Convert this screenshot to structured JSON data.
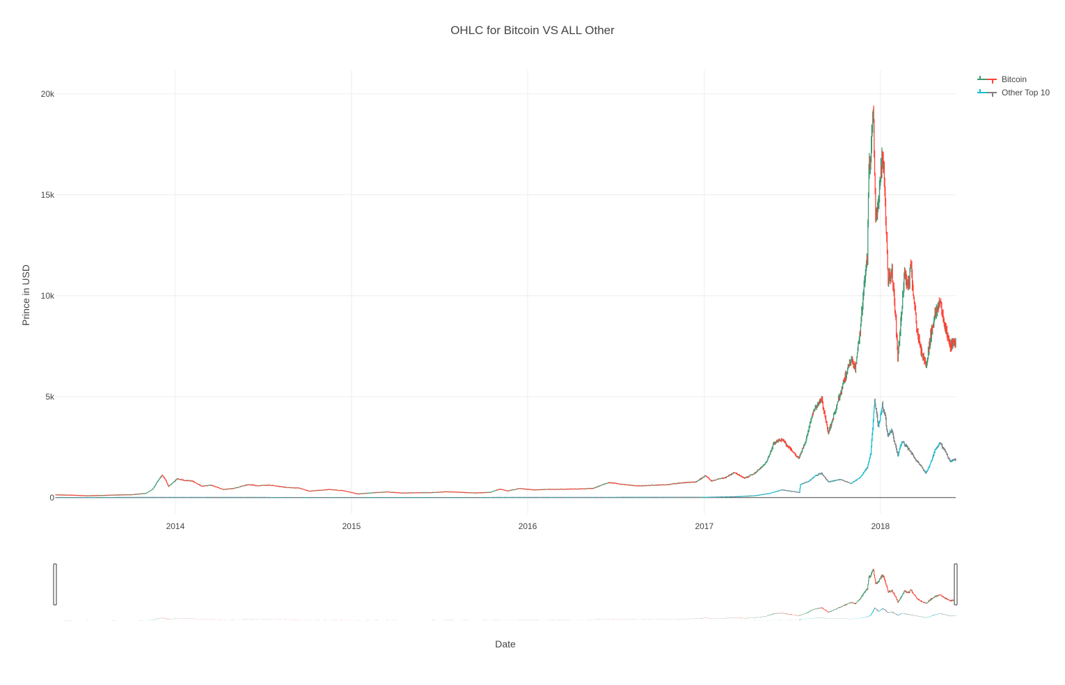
{
  "chart_data": {
    "type": "ohlc",
    "title": "OHLC for Bitcoin VS ALL Other",
    "xlabel": "Date",
    "ylabel": "Prince in USD",
    "x_range": [
      "2013-04-28",
      "2018-06-06"
    ],
    "ylim": [
      -800,
      21200
    ],
    "x_ticks": [
      {
        "label": "2014",
        "date": "2014-01-01"
      },
      {
        "label": "2015",
        "date": "2015-01-01"
      },
      {
        "label": "2016",
        "date": "2016-01-01"
      },
      {
        "label": "2017",
        "date": "2017-01-01"
      },
      {
        "label": "2018",
        "date": "2018-01-01"
      }
    ],
    "y_ticks": [
      {
        "label": "0",
        "value": 0
      },
      {
        "label": "5k",
        "value": 5000
      },
      {
        "label": "10k",
        "value": 10000
      },
      {
        "label": "15k",
        "value": 15000
      },
      {
        "label": "20k",
        "value": 20000
      }
    ],
    "grid": true,
    "legend_position": "top-right",
    "rangeslider": true,
    "series": [
      {
        "name": "Bitcoin",
        "increasing_color": "#3D9970",
        "decreasing_color": "#FF4136",
        "points": [
          [
            "2013-04-28",
            135
          ],
          [
            "2013-06-01",
            120
          ],
          [
            "2013-07-01",
            90
          ],
          [
            "2013-08-01",
            105
          ],
          [
            "2013-09-01",
            130
          ],
          [
            "2013-10-01",
            140
          ],
          [
            "2013-11-01",
            210
          ],
          [
            "2013-11-15",
            420
          ],
          [
            "2013-11-25",
            800
          ],
          [
            "2013-12-04",
            1100
          ],
          [
            "2013-12-10",
            950
          ],
          [
            "2013-12-18",
            550
          ],
          [
            "2013-12-25",
            700
          ],
          [
            "2014-01-05",
            930
          ],
          [
            "2014-01-20",
            850
          ],
          [
            "2014-02-05",
            820
          ],
          [
            "2014-02-25",
            560
          ],
          [
            "2014-03-15",
            620
          ],
          [
            "2014-04-10",
            400
          ],
          [
            "2014-05-01",
            450
          ],
          [
            "2014-06-01",
            650
          ],
          [
            "2014-06-20",
            590
          ],
          [
            "2014-07-15",
            620
          ],
          [
            "2014-08-20",
            500
          ],
          [
            "2014-09-15",
            470
          ],
          [
            "2014-10-05",
            320
          ],
          [
            "2014-11-15",
            400
          ],
          [
            "2014-12-15",
            340
          ],
          [
            "2015-01-14",
            180
          ],
          [
            "2015-02-15",
            240
          ],
          [
            "2015-03-15",
            280
          ],
          [
            "2015-04-15",
            225
          ],
          [
            "2015-05-15",
            240
          ],
          [
            "2015-06-15",
            245
          ],
          [
            "2015-07-15",
            290
          ],
          [
            "2015-08-15",
            260
          ],
          [
            "2015-09-15",
            230
          ],
          [
            "2015-10-15",
            260
          ],
          [
            "2015-11-04",
            420
          ],
          [
            "2015-11-20",
            330
          ],
          [
            "2015-12-15",
            450
          ],
          [
            "2016-01-15",
            380
          ],
          [
            "2016-02-15",
            410
          ],
          [
            "2016-03-15",
            415
          ],
          [
            "2016-04-15",
            430
          ],
          [
            "2016-05-15",
            455
          ],
          [
            "2016-06-17",
            750
          ],
          [
            "2016-07-15",
            660
          ],
          [
            "2016-08-15",
            575
          ],
          [
            "2016-09-15",
            610
          ],
          [
            "2016-10-15",
            640
          ],
          [
            "2016-11-15",
            730
          ],
          [
            "2016-12-15",
            780
          ],
          [
            "2017-01-04",
            1100
          ],
          [
            "2017-01-15",
            830
          ],
          [
            "2017-02-15",
            1000
          ],
          [
            "2017-03-05",
            1250
          ],
          [
            "2017-03-25",
            950
          ],
          [
            "2017-04-15",
            1200
          ],
          [
            "2017-05-10",
            1750
          ],
          [
            "2017-05-25",
            2700
          ],
          [
            "2017-06-10",
            2900
          ],
          [
            "2017-06-25",
            2500
          ],
          [
            "2017-07-15",
            1950
          ],
          [
            "2017-07-30",
            2750
          ],
          [
            "2017-08-15",
            4300
          ],
          [
            "2017-09-01",
            4900
          ],
          [
            "2017-09-15",
            3200
          ],
          [
            "2017-10-01",
            4400
          ],
          [
            "2017-10-20",
            6000
          ],
          [
            "2017-11-01",
            6800
          ],
          [
            "2017-11-10",
            6400
          ],
          [
            "2017-11-20",
            8200
          ],
          [
            "2017-11-29",
            10800
          ],
          [
            "2017-12-05",
            11900
          ],
          [
            "2017-12-08",
            16500
          ],
          [
            "2017-12-12",
            17000
          ],
          [
            "2017-12-17",
            19500
          ],
          [
            "2017-12-22",
            14000
          ],
          [
            "2017-12-28",
            14700
          ],
          [
            "2018-01-06",
            17100
          ],
          [
            "2018-01-10",
            14800
          ],
          [
            "2018-01-17",
            10900
          ],
          [
            "2018-01-25",
            11100
          ],
          [
            "2018-02-01",
            9100
          ],
          [
            "2018-02-06",
            6900
          ],
          [
            "2018-02-12",
            8500
          ],
          [
            "2018-02-20",
            11200
          ],
          [
            "2018-02-28",
            10400
          ],
          [
            "2018-03-05",
            11500
          ],
          [
            "2018-03-18",
            8200
          ],
          [
            "2018-03-30",
            6900
          ],
          [
            "2018-04-06",
            6600
          ],
          [
            "2018-04-15",
            8000
          ],
          [
            "2018-04-25",
            9200
          ],
          [
            "2018-05-05",
            9800
          ],
          [
            "2018-05-15",
            8500
          ],
          [
            "2018-05-25",
            7500
          ],
          [
            "2018-06-01",
            7600
          ],
          [
            "2018-06-06",
            7650
          ]
        ]
      },
      {
        "name": "Other Top 10",
        "increasing_color": "#17BECF",
        "decreasing_color": "#7F7F7F",
        "points": [
          [
            "2013-04-28",
            5
          ],
          [
            "2014-01-01",
            10
          ],
          [
            "2015-01-01",
            5
          ],
          [
            "2016-01-01",
            8
          ],
          [
            "2017-01-01",
            15
          ],
          [
            "2017-03-01",
            40
          ],
          [
            "2017-04-15",
            90
          ],
          [
            "2017-05-15",
            200
          ],
          [
            "2017-06-10",
            380
          ],
          [
            "2017-07-05",
            300
          ],
          [
            "2017-07-17",
            250
          ],
          [
            "2017-07-19",
            650
          ],
          [
            "2017-08-05",
            800
          ],
          [
            "2017-08-20",
            1100
          ],
          [
            "2017-09-01",
            1200
          ],
          [
            "2017-09-15",
            780
          ],
          [
            "2017-10-10",
            900
          ],
          [
            "2017-11-01",
            700
          ],
          [
            "2017-11-20",
            1000
          ],
          [
            "2017-12-05",
            1500
          ],
          [
            "2017-12-12",
            2200
          ],
          [
            "2017-12-20",
            4800
          ],
          [
            "2017-12-28",
            3500
          ],
          [
            "2018-01-05",
            4600
          ],
          [
            "2018-01-10",
            4200
          ],
          [
            "2018-01-16",
            3100
          ],
          [
            "2018-01-25",
            3300
          ],
          [
            "2018-02-06",
            2100
          ],
          [
            "2018-02-15",
            2800
          ],
          [
            "2018-03-01",
            2400
          ],
          [
            "2018-03-15",
            1900
          ],
          [
            "2018-03-28",
            1500
          ],
          [
            "2018-04-05",
            1200
          ],
          [
            "2018-04-15",
            1700
          ],
          [
            "2018-04-25",
            2400
          ],
          [
            "2018-05-05",
            2700
          ],
          [
            "2018-05-15",
            2300
          ],
          [
            "2018-05-25",
            1800
          ],
          [
            "2018-06-06",
            1900
          ]
        ]
      }
    ]
  }
}
